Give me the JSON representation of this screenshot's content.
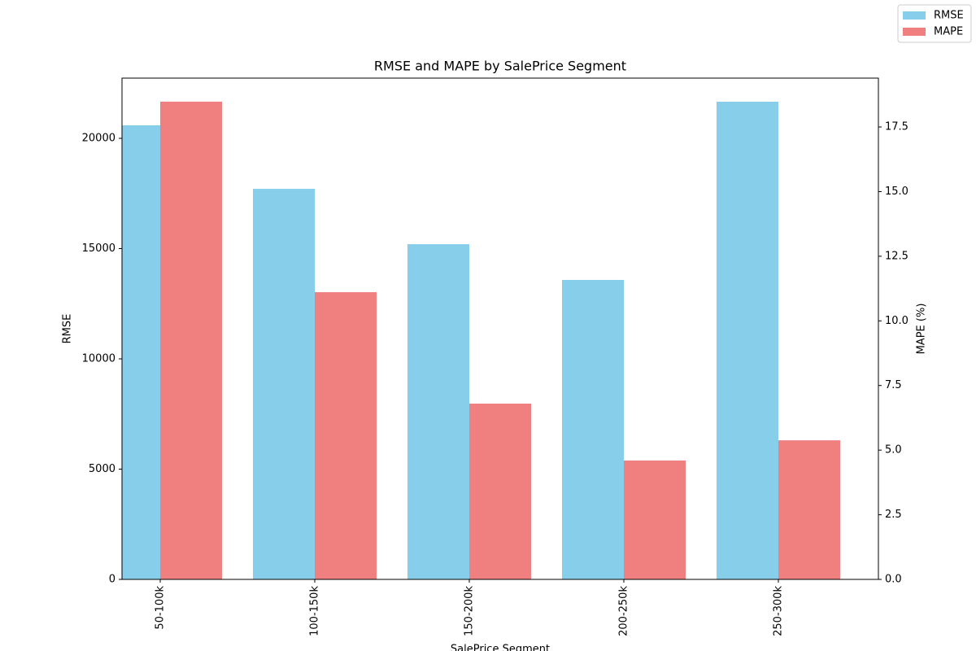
{
  "chart_data": {
    "type": "bar",
    "title": "RMSE and MAPE by SalePrice Segment",
    "x_label": "SalePrice Segment",
    "y_label": "RMSE",
    "y2_label": "MAPE (%)",
    "categories": [
      "50-100k",
      "100-150k",
      "150-200k",
      "200-250k",
      "250-300k"
    ],
    "series": [
      {
        "name": "RMSE",
        "color": "#87ceeb",
        "values": [
          20590,
          17710,
          15200,
          13580,
          21660
        ]
      },
      {
        "name": "MAPE",
        "color": "#f08080",
        "axis": "y2",
        "values": [
          18.48,
          11.11,
          6.8,
          4.6,
          5.38
        ]
      }
    ],
    "ylim": [
      0,
      22730
    ],
    "yticks": [
      0,
      5000,
      10000,
      15000,
      20000
    ],
    "y2lim": [
      0,
      19.39
    ],
    "y2ticks": [
      {
        "value": 0,
        "label": "0.0"
      },
      2.5,
      {
        "value": 5,
        "label": "5.0"
      },
      7.5,
      {
        "value": 10,
        "label": "10.0"
      },
      12.5,
      {
        "value": 15,
        "label": "15.0"
      },
      17.5
    ],
    "legend": "upper right"
  }
}
